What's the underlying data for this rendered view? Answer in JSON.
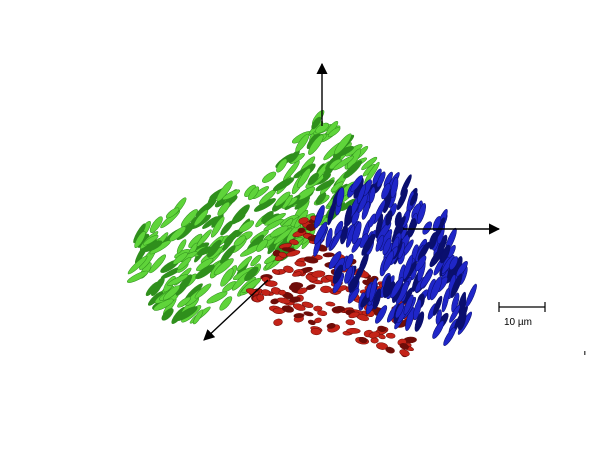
{
  "figure": {
    "scale_bar_label": "10 µm",
    "colors": {
      "background": "#ffffff",
      "green_cluster": "#5fd43a",
      "green_cluster_dark": "#2f8f1c",
      "blue_cluster": "#1f26c8",
      "blue_cluster_dark": "#0a0f6e",
      "red_cluster": "#c42318",
      "red_cluster_dark": "#6e0c08",
      "axes": "#000000"
    },
    "icons": {
      "axis_up": "arrow-up-icon",
      "axis_right": "arrow-right-icon",
      "axis_down_left": "arrow-down-left-icon"
    }
  }
}
